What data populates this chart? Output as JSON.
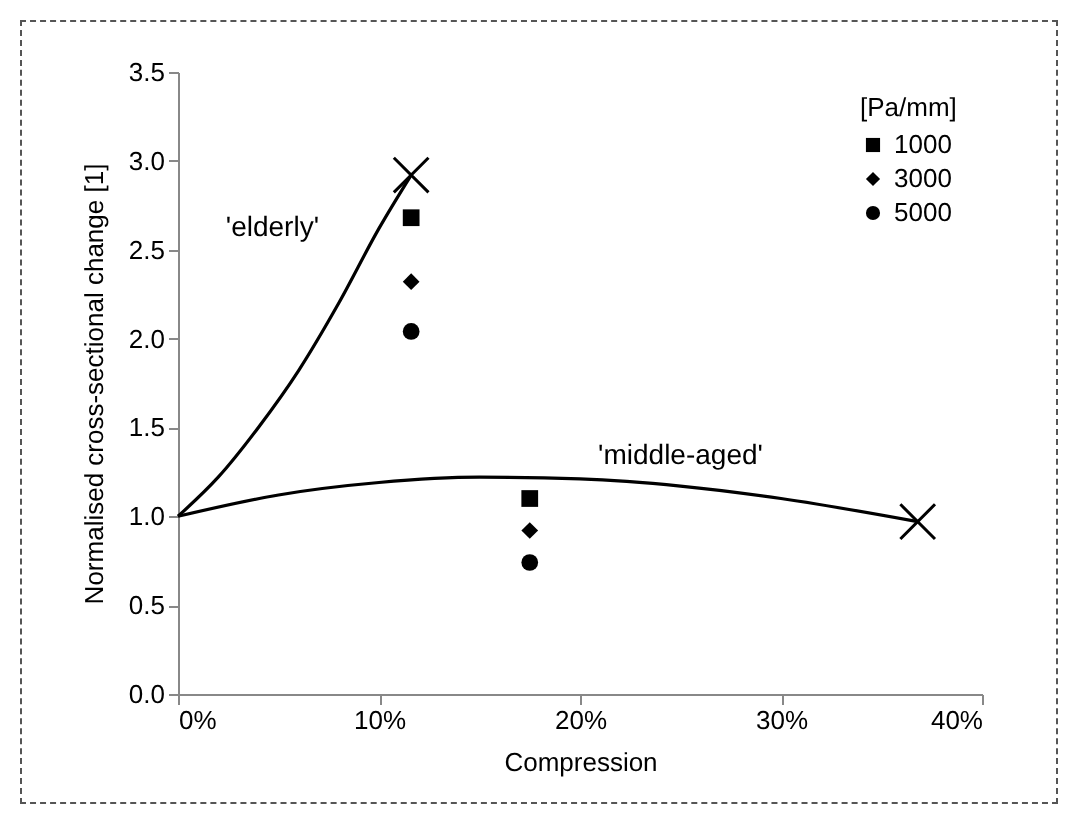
{
  "chart_data": {
    "type": "scatter",
    "xlabel": "Compression",
    "ylabel": "Normalised cross-sectional change [1]",
    "legend_title": "[Pa/mm]",
    "legend": "top right",
    "grid": false,
    "xlim": [
      0,
      40
    ],
    "xticks": [
      {
        "value": 0,
        "label": "0%"
      },
      {
        "value": 10,
        "label": "10%"
      },
      {
        "value": 20,
        "label": "20%"
      },
      {
        "value": 30,
        "label": "30%"
      },
      {
        "value": 40,
        "label": "40%"
      }
    ],
    "ylim": [
      0,
      3.5
    ],
    "yticks": [
      {
        "value": 0,
        "label": "0.0"
      },
      {
        "value": 0.5,
        "label": "0.5"
      },
      {
        "value": 1,
        "label": "1.0"
      },
      {
        "value": 1.5,
        "label": "1.5"
      },
      {
        "value": 2,
        "label": "2.0"
      },
      {
        "value": 2.5,
        "label": "2.5"
      },
      {
        "value": 3,
        "label": "3.0"
      },
      {
        "value": 3.5,
        "label": "3.5"
      }
    ],
    "series": [
      {
        "name": "'elderly'",
        "type": "line",
        "color": "#000000",
        "marker": "none",
        "x": [
          0,
          2,
          4,
          6,
          8,
          10,
          11.6
        ],
        "values": [
          1,
          1.22,
          1.5,
          1.82,
          2.2,
          2.62,
          2.92
        ]
      },
      {
        "name": "'middle-aged'",
        "type": "line",
        "color": "#000000",
        "marker": "none",
        "x": [
          0,
          5,
          10,
          15,
          20,
          25,
          30,
          36.8
        ],
        "values": [
          1,
          1.12,
          1.19,
          1.22,
          1.21,
          1.17,
          1.1,
          0.97
        ]
      },
      {
        "color": "#000000",
        "marker": "cross",
        "x": [
          11.6,
          36.8
        ],
        "values": [
          2.92,
          0.97
        ]
      },
      {
        "name": "1000",
        "color": "#000000",
        "marker": "square",
        "x": [
          11.6,
          17.5
        ],
        "values": [
          2.68,
          1.1
        ]
      },
      {
        "name": "3000",
        "color": "#000000",
        "marker": "diamond",
        "x": [
          11.6,
          17.5
        ],
        "values": [
          2.32,
          0.92
        ]
      },
      {
        "name": "5000",
        "color": "#000000",
        "marker": "circle",
        "x": [
          11.6,
          17.5
        ],
        "values": [
          2.04,
          0.74
        ]
      }
    ]
  }
}
